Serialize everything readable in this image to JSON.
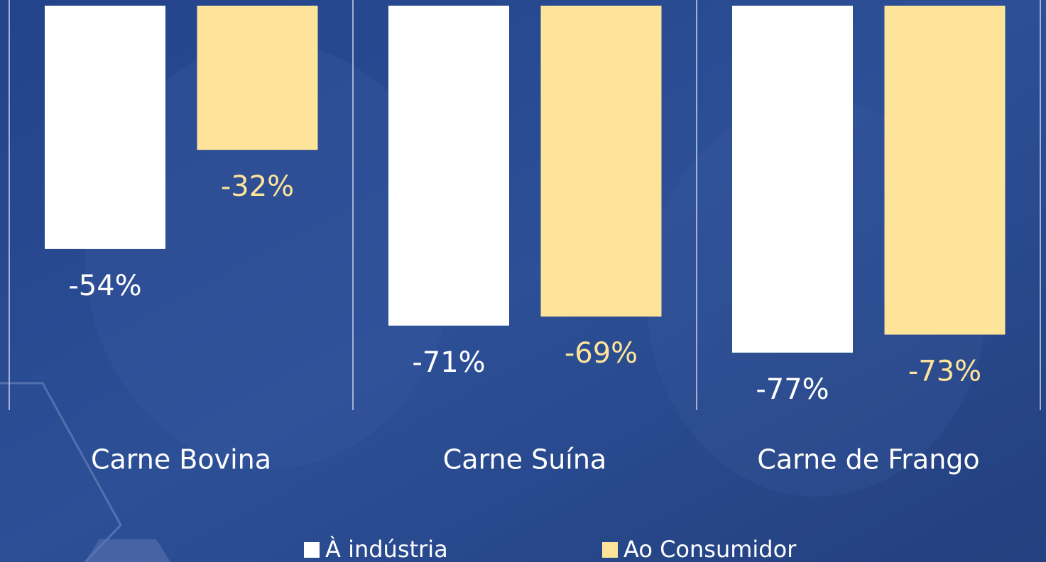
{
  "chart_data": {
    "type": "bar",
    "categories": [
      "Carne Bovina",
      "Carne Suína",
      "Carne de Frango"
    ],
    "series": [
      {
        "name": "À indústria",
        "color": "#ffffff",
        "values": [
          -54,
          -71,
          -77
        ],
        "value_labels": [
          "-54%",
          "-71%",
          "-77%"
        ]
      },
      {
        "name": "Ao Consumidor",
        "color": "#fde49a",
        "values": [
          -32,
          -69,
          -73
        ],
        "value_labels": [
          "-32%",
          "-69%",
          "-73%"
        ]
      }
    ],
    "ylim": [
      -120,
      0
    ],
    "legend": "bottom"
  }
}
